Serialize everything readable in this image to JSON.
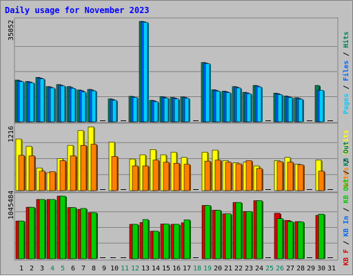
{
  "chart_data": [
    {
      "type": "bar",
      "title": "Daily usage for November 2023",
      "panel": "top",
      "max_label": "35052",
      "ylim": [
        0,
        35052
      ],
      "legend": [
        {
          "text": "Pages",
          "color": "#00ccff"
        },
        {
          "text": " / ",
          "color": "#000000"
        },
        {
          "text": "Files",
          "color": "#0066ff"
        },
        {
          "text": " / ",
          "color": "#000000"
        },
        {
          "text": "Hits",
          "color": "#00805c"
        }
      ],
      "categories": [
        "1",
        "2",
        "3",
        "4",
        "5",
        "6",
        "7",
        "8",
        "9",
        "10",
        "11",
        "12",
        "13",
        "14",
        "15",
        "16",
        "17",
        "18",
        "19",
        "20",
        "21",
        "22",
        "23",
        "24",
        "25",
        "26",
        "27",
        "28",
        "29",
        "30",
        "31"
      ],
      "weekend_days": [
        "4",
        "5",
        "11",
        "12",
        "18",
        "19",
        "25",
        "26"
      ],
      "series": [
        {
          "name": "Hits",
          "color": "#00805c",
          "values": [
            14600,
            14100,
            15500,
            12300,
            13000,
            12300,
            11100,
            11300,
            0,
            8000,
            0,
            8900,
            35052,
            7500,
            8800,
            8500,
            8700,
            0,
            20700,
            11200,
            10700,
            12300,
            10300,
            12700,
            0,
            10000,
            9000,
            8400,
            0,
            12700,
            0
          ]
        },
        {
          "name": "Files",
          "color": "#0066ff",
          "values": [
            14300,
            13900,
            15300,
            12100,
            12800,
            12000,
            10900,
            11100,
            0,
            7800,
            0,
            8700,
            34900,
            7300,
            8600,
            8300,
            8500,
            0,
            20500,
            11000,
            10500,
            12100,
            10100,
            12500,
            0,
            9800,
            8800,
            8200,
            0,
            11000,
            0
          ]
        },
        {
          "name": "Pages",
          "color": "#00ccff",
          "values": [
            14000,
            13600,
            15000,
            11800,
            12500,
            11700,
            10400,
            10800,
            0,
            7500,
            0,
            8500,
            34700,
            7000,
            8300,
            8000,
            8200,
            0,
            20300,
            10700,
            10200,
            11800,
            9800,
            12200,
            0,
            9500,
            8500,
            7900,
            0,
            11000,
            0
          ]
        }
      ]
    },
    {
      "type": "bar",
      "panel": "middle",
      "max_label": "1216",
      "ylim": [
        0,
        1216
      ],
      "legend": [
        {
          "text": "Sites",
          "color": "#ff8000"
        },
        {
          "text": " / ",
          "color": "#000000"
        },
        {
          "text": "Visits",
          "color": "#ffff00"
        }
      ],
      "categories": [
        "1",
        "2",
        "3",
        "4",
        "5",
        "6",
        "7",
        "8",
        "9",
        "10",
        "11",
        "12",
        "13",
        "14",
        "15",
        "16",
        "17",
        "18",
        "19",
        "20",
        "21",
        "22",
        "23",
        "24",
        "25",
        "26",
        "27",
        "28",
        "29",
        "30",
        "31"
      ],
      "series": [
        {
          "name": "Visits",
          "color": "#ffff00",
          "values": [
            980,
            840,
            430,
            340,
            610,
            860,
            1140,
            1210,
            0,
            920,
            0,
            600,
            680,
            780,
            680,
            730,
            630,
            0,
            730,
            770,
            570,
            530,
            540,
            470,
            0,
            570,
            630,
            500,
            0,
            580,
            0
          ]
        },
        {
          "name": "Sites",
          "color": "#ff8000",
          "values": [
            670,
            660,
            370,
            360,
            570,
            660,
            860,
            880,
            0,
            650,
            0,
            470,
            470,
            580,
            540,
            520,
            500,
            0,
            560,
            580,
            540,
            510,
            570,
            420,
            0,
            550,
            540,
            490,
            0,
            370,
            0
          ]
        }
      ]
    },
    {
      "type": "bar",
      "panel": "bottom",
      "max_label": "1045484",
      "ylim": [
        0,
        1045484
      ],
      "legend": [
        {
          "text": "KB F",
          "color": "#dd0000"
        },
        {
          "text": " / ",
          "color": "#000000"
        },
        {
          "text": "KB In",
          "color": "#0066ff"
        },
        {
          "text": " / ",
          "color": "#000000"
        },
        {
          "text": "KB Out",
          "color": "#00cc00"
        },
        {
          "text": " / ",
          "color": "#000000"
        },
        {
          "text": "KB Out",
          "color": "#00805c"
        }
      ],
      "categories": [
        "1",
        "2",
        "3",
        "4",
        "5",
        "6",
        "7",
        "8",
        "9",
        "10",
        "11",
        "12",
        "13",
        "14",
        "15",
        "16",
        "17",
        "18",
        "19",
        "20",
        "21",
        "22",
        "23",
        "24",
        "25",
        "26",
        "27",
        "28",
        "29",
        "30",
        "31"
      ],
      "series": [
        {
          "name": "KB F",
          "color": "#dd0000",
          "values": [
            630000,
            860000,
            990000,
            990000,
            1045484,
            855000,
            825000,
            770000,
            0,
            0,
            0,
            575000,
            605000,
            460000,
            580000,
            575000,
            600000,
            0,
            890000,
            810000,
            750000,
            940000,
            790000,
            970000,
            0,
            760000,
            640000,
            620000,
            0,
            725000,
            0
          ]
        },
        {
          "name": "KB Out",
          "color": "#00cc00",
          "values": [
            630000,
            860000,
            990000,
            990000,
            1045484,
            855000,
            840000,
            770000,
            0,
            0,
            0,
            575000,
            655000,
            460000,
            580000,
            575000,
            650000,
            0,
            890000,
            810000,
            750000,
            940000,
            790000,
            970000,
            0,
            670000,
            620000,
            615000,
            0,
            745000,
            0
          ]
        }
      ]
    }
  ]
}
